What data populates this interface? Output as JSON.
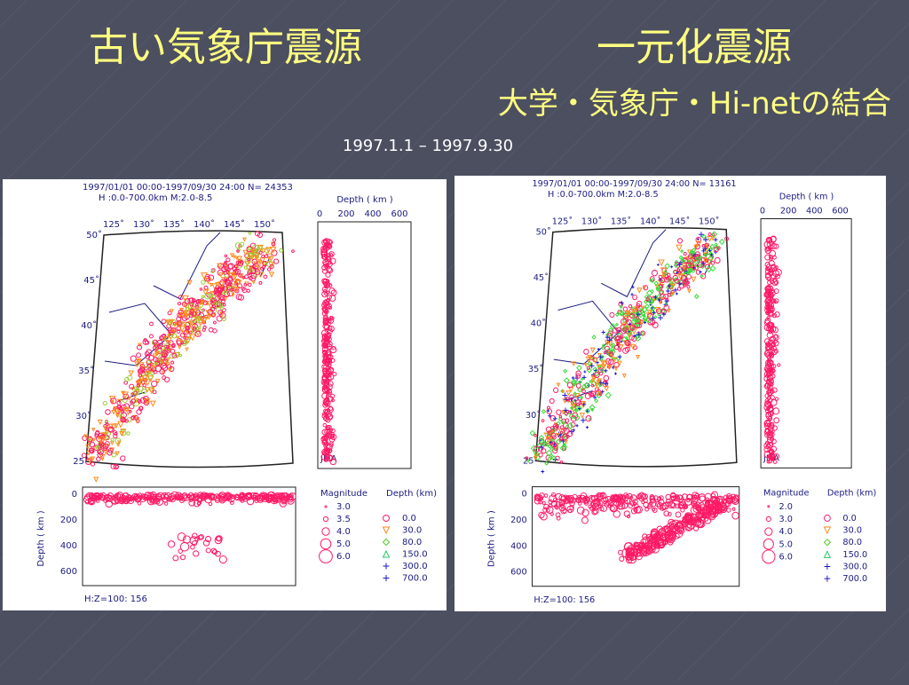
{
  "slide": {
    "title_left": "古い気象庁震源",
    "title_right": "一元化震源",
    "subtitle": "大学・気象庁・Hi-netの結合",
    "date_range": "1997.1.1 – 1997.9.30"
  },
  "panels": [
    {
      "header": [
        "1997/01/01 00:00-1997/09/30 24:00    N= 24353",
        "H :0.0-700.0km  M:2.0-8.5"
      ],
      "lon_ticks": [
        "125˚",
        "130˚",
        "135˚",
        "140˚",
        "145˚",
        "150˚"
      ],
      "lat_ticks": [
        "50˚",
        "45˚",
        "40˚",
        "35˚",
        "30˚",
        "25˚"
      ],
      "depth_axis_title": "Depth ( km )",
      "depth_ticks": [
        "0",
        "200",
        "400",
        "600"
      ],
      "section_axis_title": "Depth ( km )",
      "section_ticks": [
        "0",
        "200",
        "400",
        "600"
      ],
      "agency": "JMA",
      "magnitude_title": "Magnitude",
      "magnitudes": [
        "3.0",
        "3.5",
        "4.0",
        "5.0",
        "6.0"
      ],
      "depth_legend_title": "Depth (km)",
      "depth_legend": [
        "0.0",
        "30.0",
        "80.0",
        "150.0",
        "300.0",
        "700.0"
      ],
      "scale_note": "H:Z=100: 156"
    },
    {
      "header": [
        "1997/01/01 00:00-1997/09/30 24:00    N= 13161",
        "H :0.0-700.0km  M:2.0-8.5"
      ],
      "lon_ticks": [
        "125˚",
        "130˚",
        "135˚",
        "140˚",
        "145˚",
        "150˚"
      ],
      "lat_ticks": [
        "50˚",
        "45˚",
        "40˚",
        "35˚",
        "30˚",
        "25˚"
      ],
      "depth_axis_title": "Depth ( km )",
      "depth_ticks": [
        "0",
        "200",
        "400",
        "600"
      ],
      "section_axis_title": "Depth ( km )",
      "section_ticks": [
        "0",
        "200",
        "400",
        "600"
      ],
      "agency": "JMA",
      "magnitude_title": "Magnitude",
      "magnitudes": [
        "2.0",
        "3.0",
        "4.0",
        "5.0",
        "6.0"
      ],
      "depth_legend_title": "Depth (km)",
      "depth_legend": [
        "0.0",
        "30.0",
        "80.0",
        "150.0",
        "300.0",
        "700.0"
      ],
      "scale_note": "H:Z=100: 156"
    }
  ]
}
